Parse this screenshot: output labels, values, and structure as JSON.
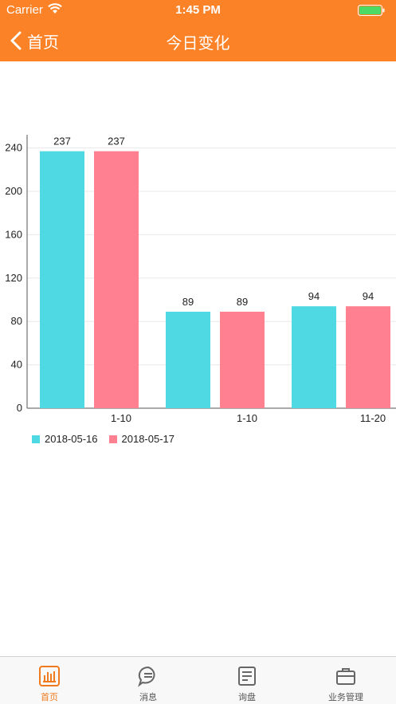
{
  "status_bar": {
    "carrier": "Carrier",
    "time": "1:45 PM"
  },
  "nav": {
    "back_label": "首页",
    "title": "今日变化"
  },
  "chart_data": {
    "type": "bar",
    "categories": [
      "1-10",
      "1-10",
      "11-20"
    ],
    "series": [
      {
        "name": "2018-05-16",
        "values": [
          237,
          89,
          94
        ],
        "color": "#4fd9e3"
      },
      {
        "name": "2018-05-17",
        "values": [
          237,
          89,
          94
        ],
        "color": "#fe8091"
      }
    ],
    "ylim": [
      0,
      250
    ],
    "yticks": [
      0,
      40,
      80,
      120,
      160,
      200,
      240
    ],
    "ytick_labels": [
      "0",
      "40",
      "80",
      "120",
      "160",
      "200",
      "240"
    ],
    "grid": true,
    "legend": "bottom-left"
  },
  "legend": {
    "items": [
      "2018-05-16",
      "2018-05-17"
    ]
  },
  "tabbar": {
    "tabs": [
      {
        "label": "首页",
        "icon": "chart-icon",
        "active": true
      },
      {
        "label": "消息",
        "icon": "message-icon",
        "active": false
      },
      {
        "label": "询盘",
        "icon": "inquiry-icon",
        "active": false
      },
      {
        "label": "业务管理",
        "icon": "business-icon",
        "active": false
      }
    ]
  },
  "colors": {
    "brand": "#fc8228",
    "tab_active": "#f07a1e"
  }
}
